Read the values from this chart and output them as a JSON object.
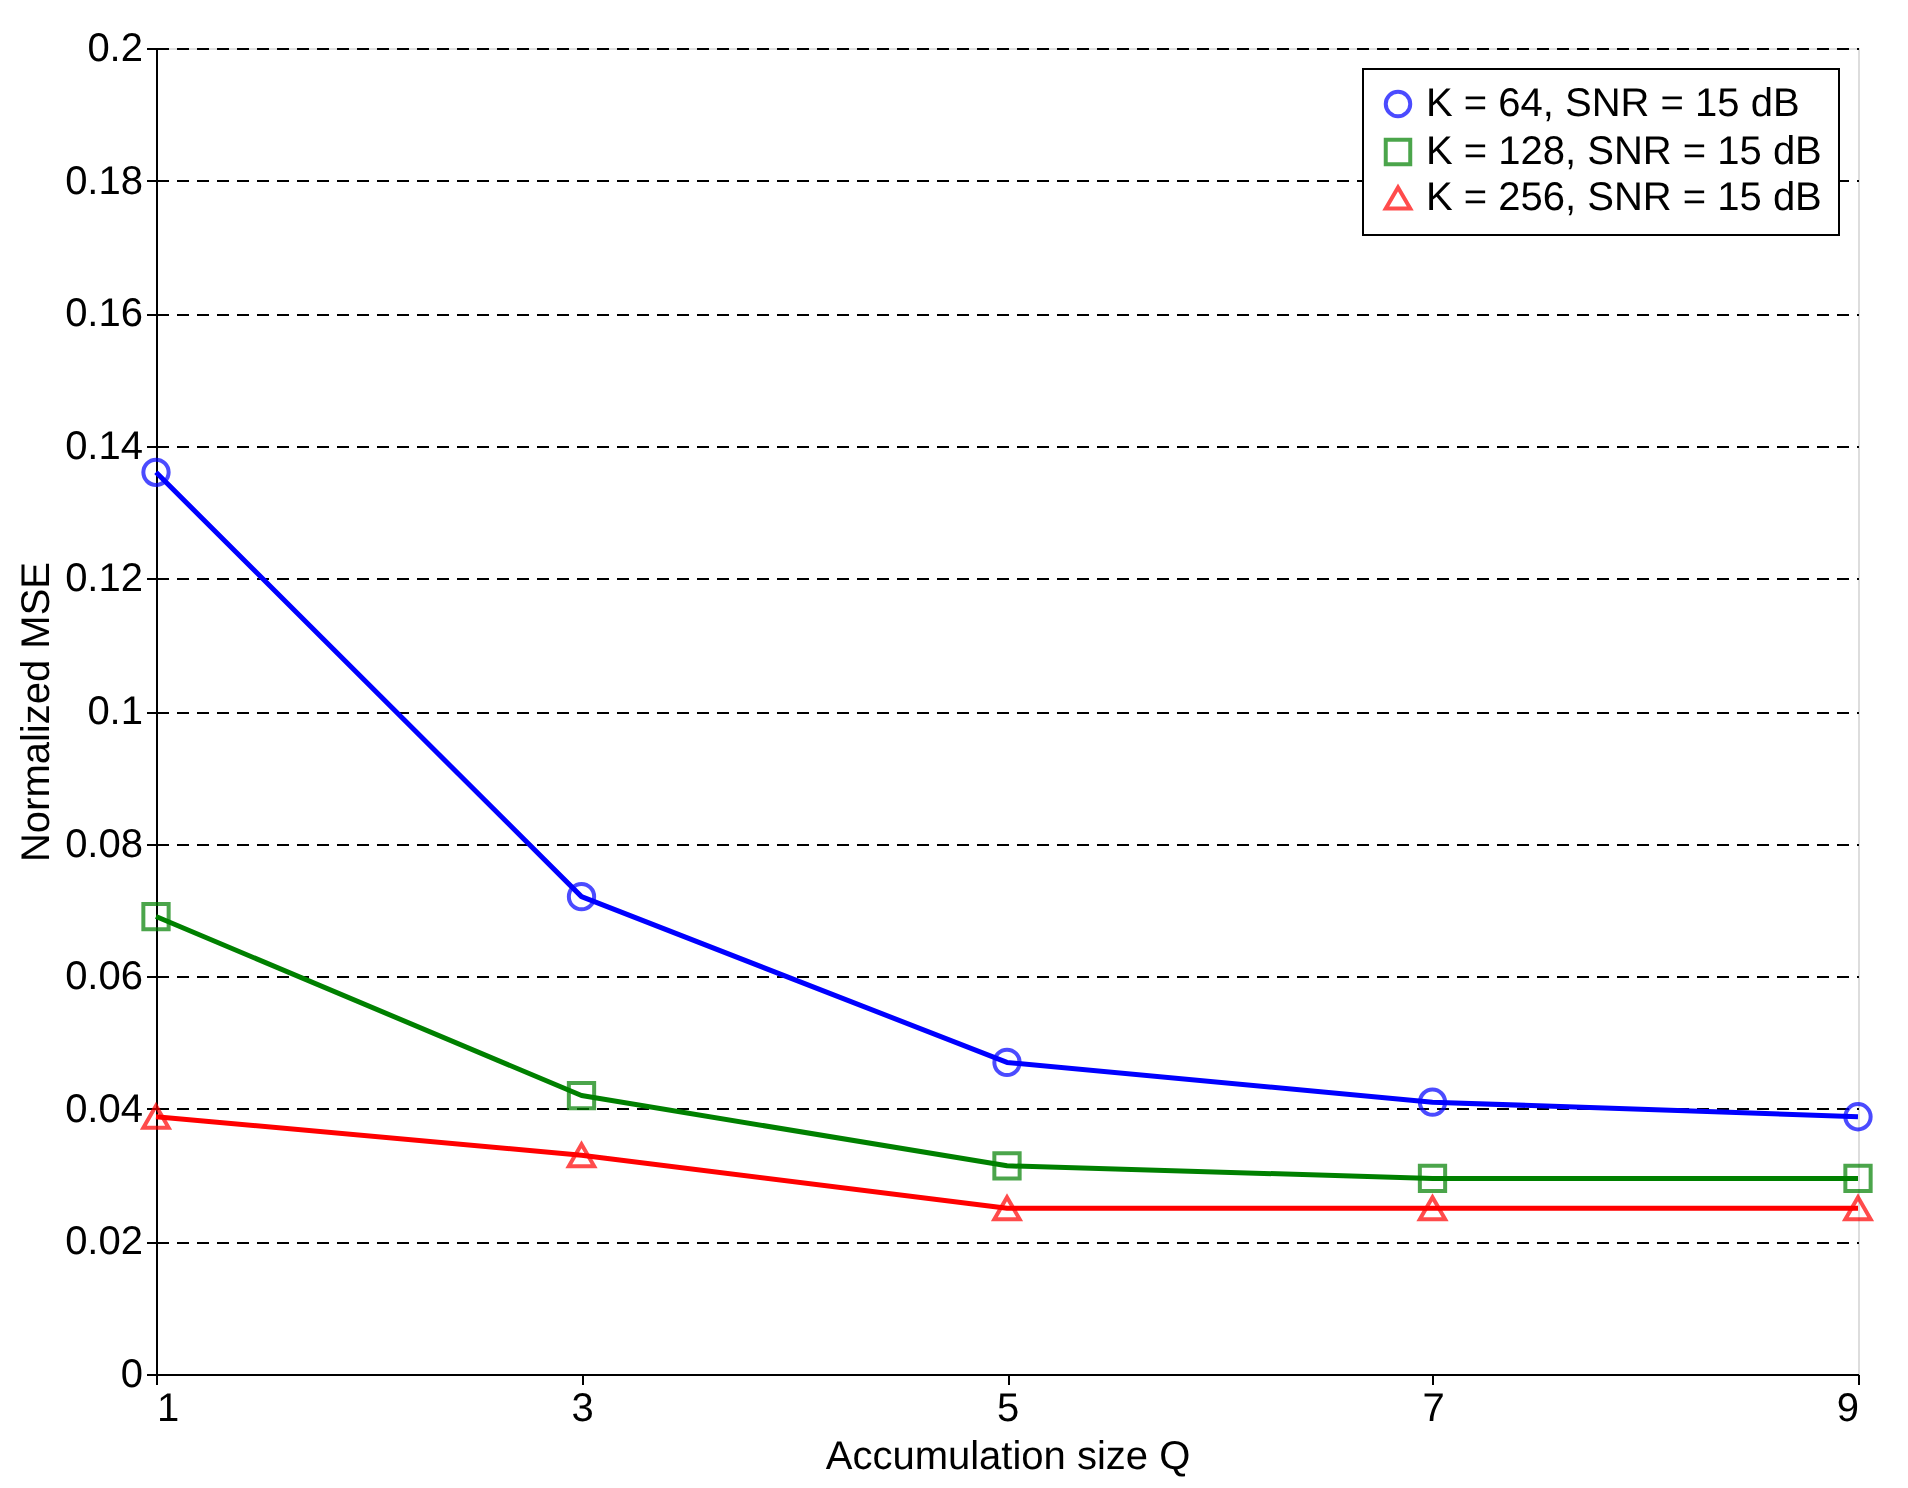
{
  "chart_data": {
    "type": "line",
    "xlabel": "Accumulation size Q",
    "ylabel": "Normalized MSE",
    "x": [
      1,
      3,
      5,
      7,
      9
    ],
    "series": [
      {
        "name": "K =   64, SNR = 15 dB",
        "color": "#0000ff",
        "marker": "circle",
        "values": [
          0.136,
          0.072,
          0.047,
          0.041,
          0.0388
        ]
      },
      {
        "name": "K = 128, SNR = 15 dB",
        "color": "#008000",
        "marker": "square",
        "values": [
          0.069,
          0.042,
          0.0314,
          0.0295,
          0.0295
        ]
      },
      {
        "name": "K = 256, SNR = 15 dB",
        "color": "#ff0000",
        "marker": "triangle",
        "values": [
          0.0388,
          0.033,
          0.025,
          0.025,
          0.025
        ]
      }
    ],
    "xlim": [
      1,
      9
    ],
    "xticks": [
      1,
      3,
      5,
      7,
      9
    ],
    "ylim": [
      0,
      0.2
    ],
    "yticks": [
      0,
      0.02,
      0.04,
      0.06,
      0.08,
      0.1,
      0.12,
      0.14,
      0.16,
      0.18,
      0.2
    ],
    "grid": "y",
    "legend": "top right",
    "line_style": "solid"
  }
}
